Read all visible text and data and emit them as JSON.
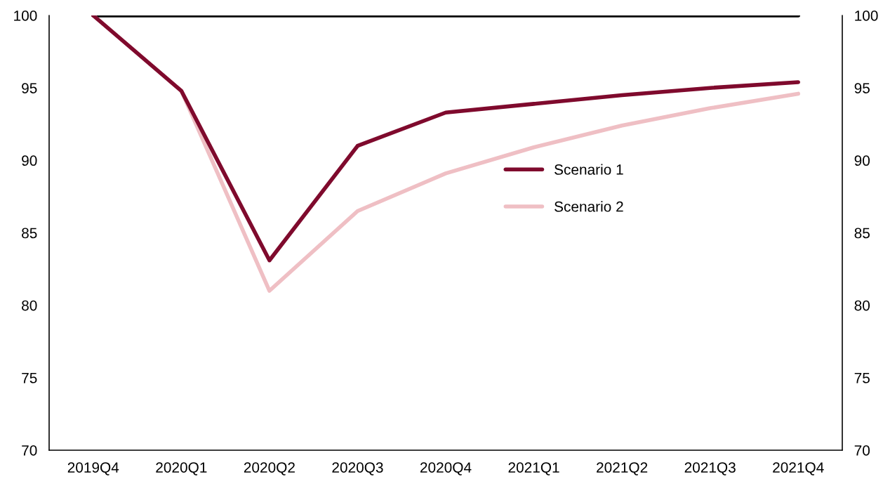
{
  "chart_data": {
    "type": "line",
    "categories": [
      "2019Q4",
      "2020Q1",
      "2020Q2",
      "2020Q3",
      "2020Q4",
      "2021Q1",
      "2021Q2",
      "2021Q3",
      "2021Q4"
    ],
    "series": [
      {
        "color": "#000000",
        "values": [
          100,
          100,
          100,
          100,
          100,
          100,
          100,
          100,
          100
        ]
      },
      {
        "name": "Scenario 2",
        "color": "#efbfc4",
        "values": [
          100,
          94.8,
          81.0,
          86.5,
          89.1,
          90.9,
          92.4,
          93.6,
          94.6
        ]
      },
      {
        "name": "Scenario 1",
        "color": "#7f0a2d",
        "values": [
          100,
          94.8,
          83.1,
          91.0,
          93.3,
          93.9,
          94.5,
          95.0,
          95.4
        ]
      }
    ],
    "ylim": [
      70,
      100
    ],
    "yticks": [
      70,
      75,
      80,
      85,
      90,
      95,
      100
    ],
    "y2lim": [
      70,
      100
    ],
    "y2ticks": [
      70,
      75,
      80,
      85,
      90,
      95,
      100
    ],
    "grid": false,
    "legend": "center",
    "marker": "none",
    "line_style": "solid"
  }
}
